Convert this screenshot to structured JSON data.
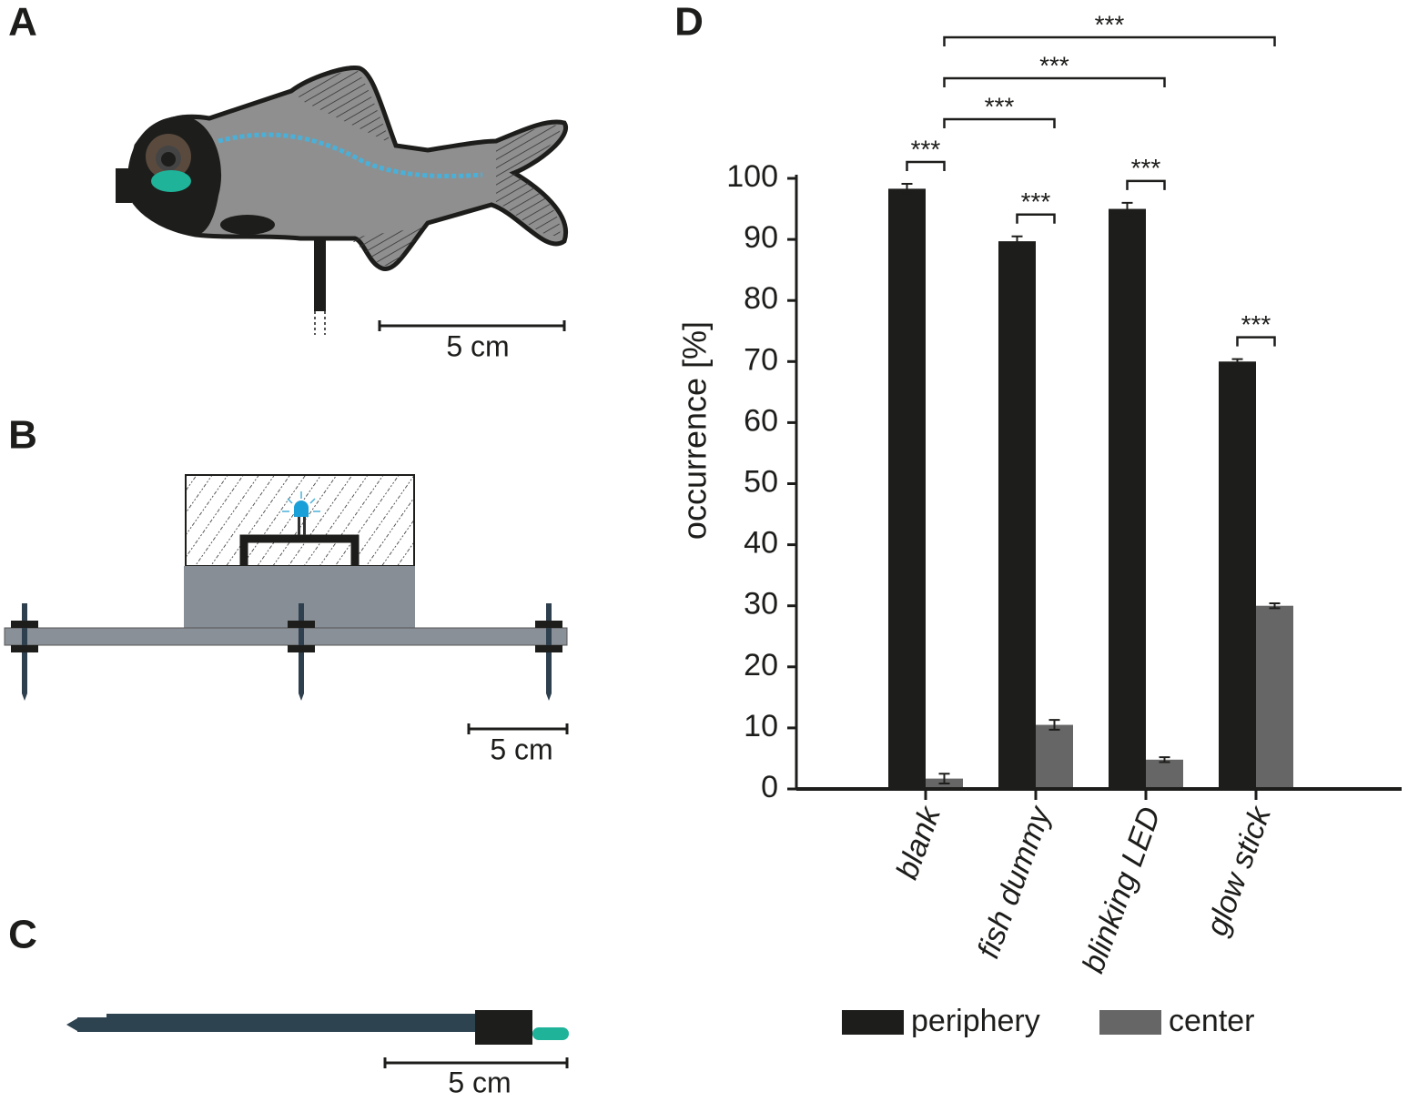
{
  "panels": {
    "a": "A",
    "b": "B",
    "c": "C",
    "d": "D"
  },
  "scale_bars": {
    "a": "5 cm",
    "b": "5 cm",
    "c": "5 cm"
  },
  "chart_data": {
    "type": "bar",
    "y_label": "occurrence [%]",
    "categories": [
      "blank",
      "fish dummy",
      "blinking LED",
      "glow stick"
    ],
    "series": [
      {
        "name": "periphery",
        "color": "#1d1d1b",
        "values": [
          98.3,
          89.7,
          95.0,
          70.0
        ],
        "errors": [
          0.8,
          0.8,
          1.0,
          0.4
        ]
      },
      {
        "name": "center",
        "color": "#666666",
        "values": [
          1.7,
          10.5,
          4.8,
          30.0
        ],
        "errors": [
          0.8,
          0.8,
          0.4,
          0.4
        ]
      }
    ],
    "ylim": [
      0,
      100
    ],
    "yticks": [
      0,
      10,
      20,
      30,
      40,
      50,
      60,
      70,
      80,
      90,
      100
    ],
    "significance": [
      {
        "label": "***",
        "from": {
          "series": 0,
          "category": 0
        },
        "to": {
          "series": 1,
          "category": 0
        }
      },
      {
        "label": "***",
        "from": {
          "series": 0,
          "category": 1
        },
        "to": {
          "series": 1,
          "category": 1
        }
      },
      {
        "label": "***",
        "from": {
          "series": 0,
          "category": 2
        },
        "to": {
          "series": 1,
          "category": 2
        }
      },
      {
        "label": "***",
        "from": {
          "series": 0,
          "category": 3
        },
        "to": {
          "series": 1,
          "category": 3
        }
      },
      {
        "label": "***",
        "from": {
          "series": 1,
          "category": 0
        },
        "to": {
          "series": 1,
          "category": 1
        }
      },
      {
        "label": "***",
        "from": {
          "series": 1,
          "category": 0
        },
        "to": {
          "series": 1,
          "category": 2
        }
      },
      {
        "label": "***",
        "from": {
          "series": 1,
          "category": 0
        },
        "to": {
          "series": 1,
          "category": 3
        }
      }
    ]
  }
}
